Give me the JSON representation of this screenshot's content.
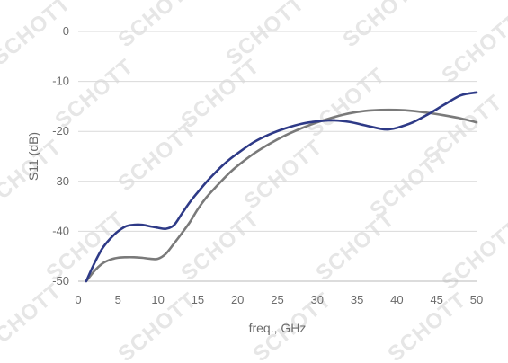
{
  "chart_data": {
    "type": "line",
    "title": "",
    "xlabel": "freq., GHz",
    "ylabel": "S11 (dB)",
    "xlim": [
      0,
      50
    ],
    "ylim": [
      -50,
      0
    ],
    "x_ticks": [
      0,
      5,
      10,
      15,
      20,
      25,
      30,
      35,
      40,
      45,
      50
    ],
    "y_ticks": [
      0,
      -10,
      -20,
      -30,
      -40,
      -50
    ],
    "grid": "horizontal",
    "legend": "none",
    "watermark_text": "SCHOTT",
    "series": [
      {
        "color": "#2e3a87",
        "x": [
          1,
          2,
          3,
          4,
          5,
          6,
          7,
          8,
          9,
          10,
          11,
          12,
          13,
          14,
          15,
          16,
          17,
          18,
          19,
          20,
          22,
          24,
          26,
          28,
          30,
          32,
          34,
          36,
          38,
          39,
          40,
          42,
          44,
          46,
          48,
          50
        ],
        "y": [
          -50,
          -46.5,
          -43.5,
          -41.5,
          -40,
          -39,
          -38.7,
          -38.7,
          -39,
          -39.3,
          -39.5,
          -38.8,
          -36.5,
          -34.2,
          -32.2,
          -30.3,
          -28.6,
          -27,
          -25.6,
          -24.4,
          -22.2,
          -20.6,
          -19.4,
          -18.5,
          -18,
          -17.8,
          -18.1,
          -18.8,
          -19.5,
          -19.6,
          -19.3,
          -18.2,
          -16.5,
          -14.6,
          -12.8,
          -12.2
        ]
      },
      {
        "color": "#7a7a7a",
        "x": [
          1,
          2,
          3,
          4,
          5,
          6,
          7,
          8,
          9,
          10,
          11,
          12,
          13,
          14,
          15,
          16,
          17,
          18,
          19,
          20,
          22,
          24,
          26,
          28,
          30,
          32,
          34,
          36,
          38,
          40,
          42,
          44,
          46,
          48,
          50
        ],
        "y": [
          -50,
          -48,
          -46.5,
          -45.7,
          -45.3,
          -45.2,
          -45.2,
          -45.3,
          -45.5,
          -45.5,
          -44.5,
          -42.5,
          -40.4,
          -38.2,
          -35.6,
          -33.4,
          -31.6,
          -29.9,
          -28.3,
          -26.9,
          -24.5,
          -22.5,
          -20.8,
          -19.4,
          -18.2,
          -17.2,
          -16.4,
          -15.9,
          -15.7,
          -15.7,
          -15.9,
          -16.3,
          -16.8,
          -17.4,
          -18.2
        ]
      }
    ]
  }
}
